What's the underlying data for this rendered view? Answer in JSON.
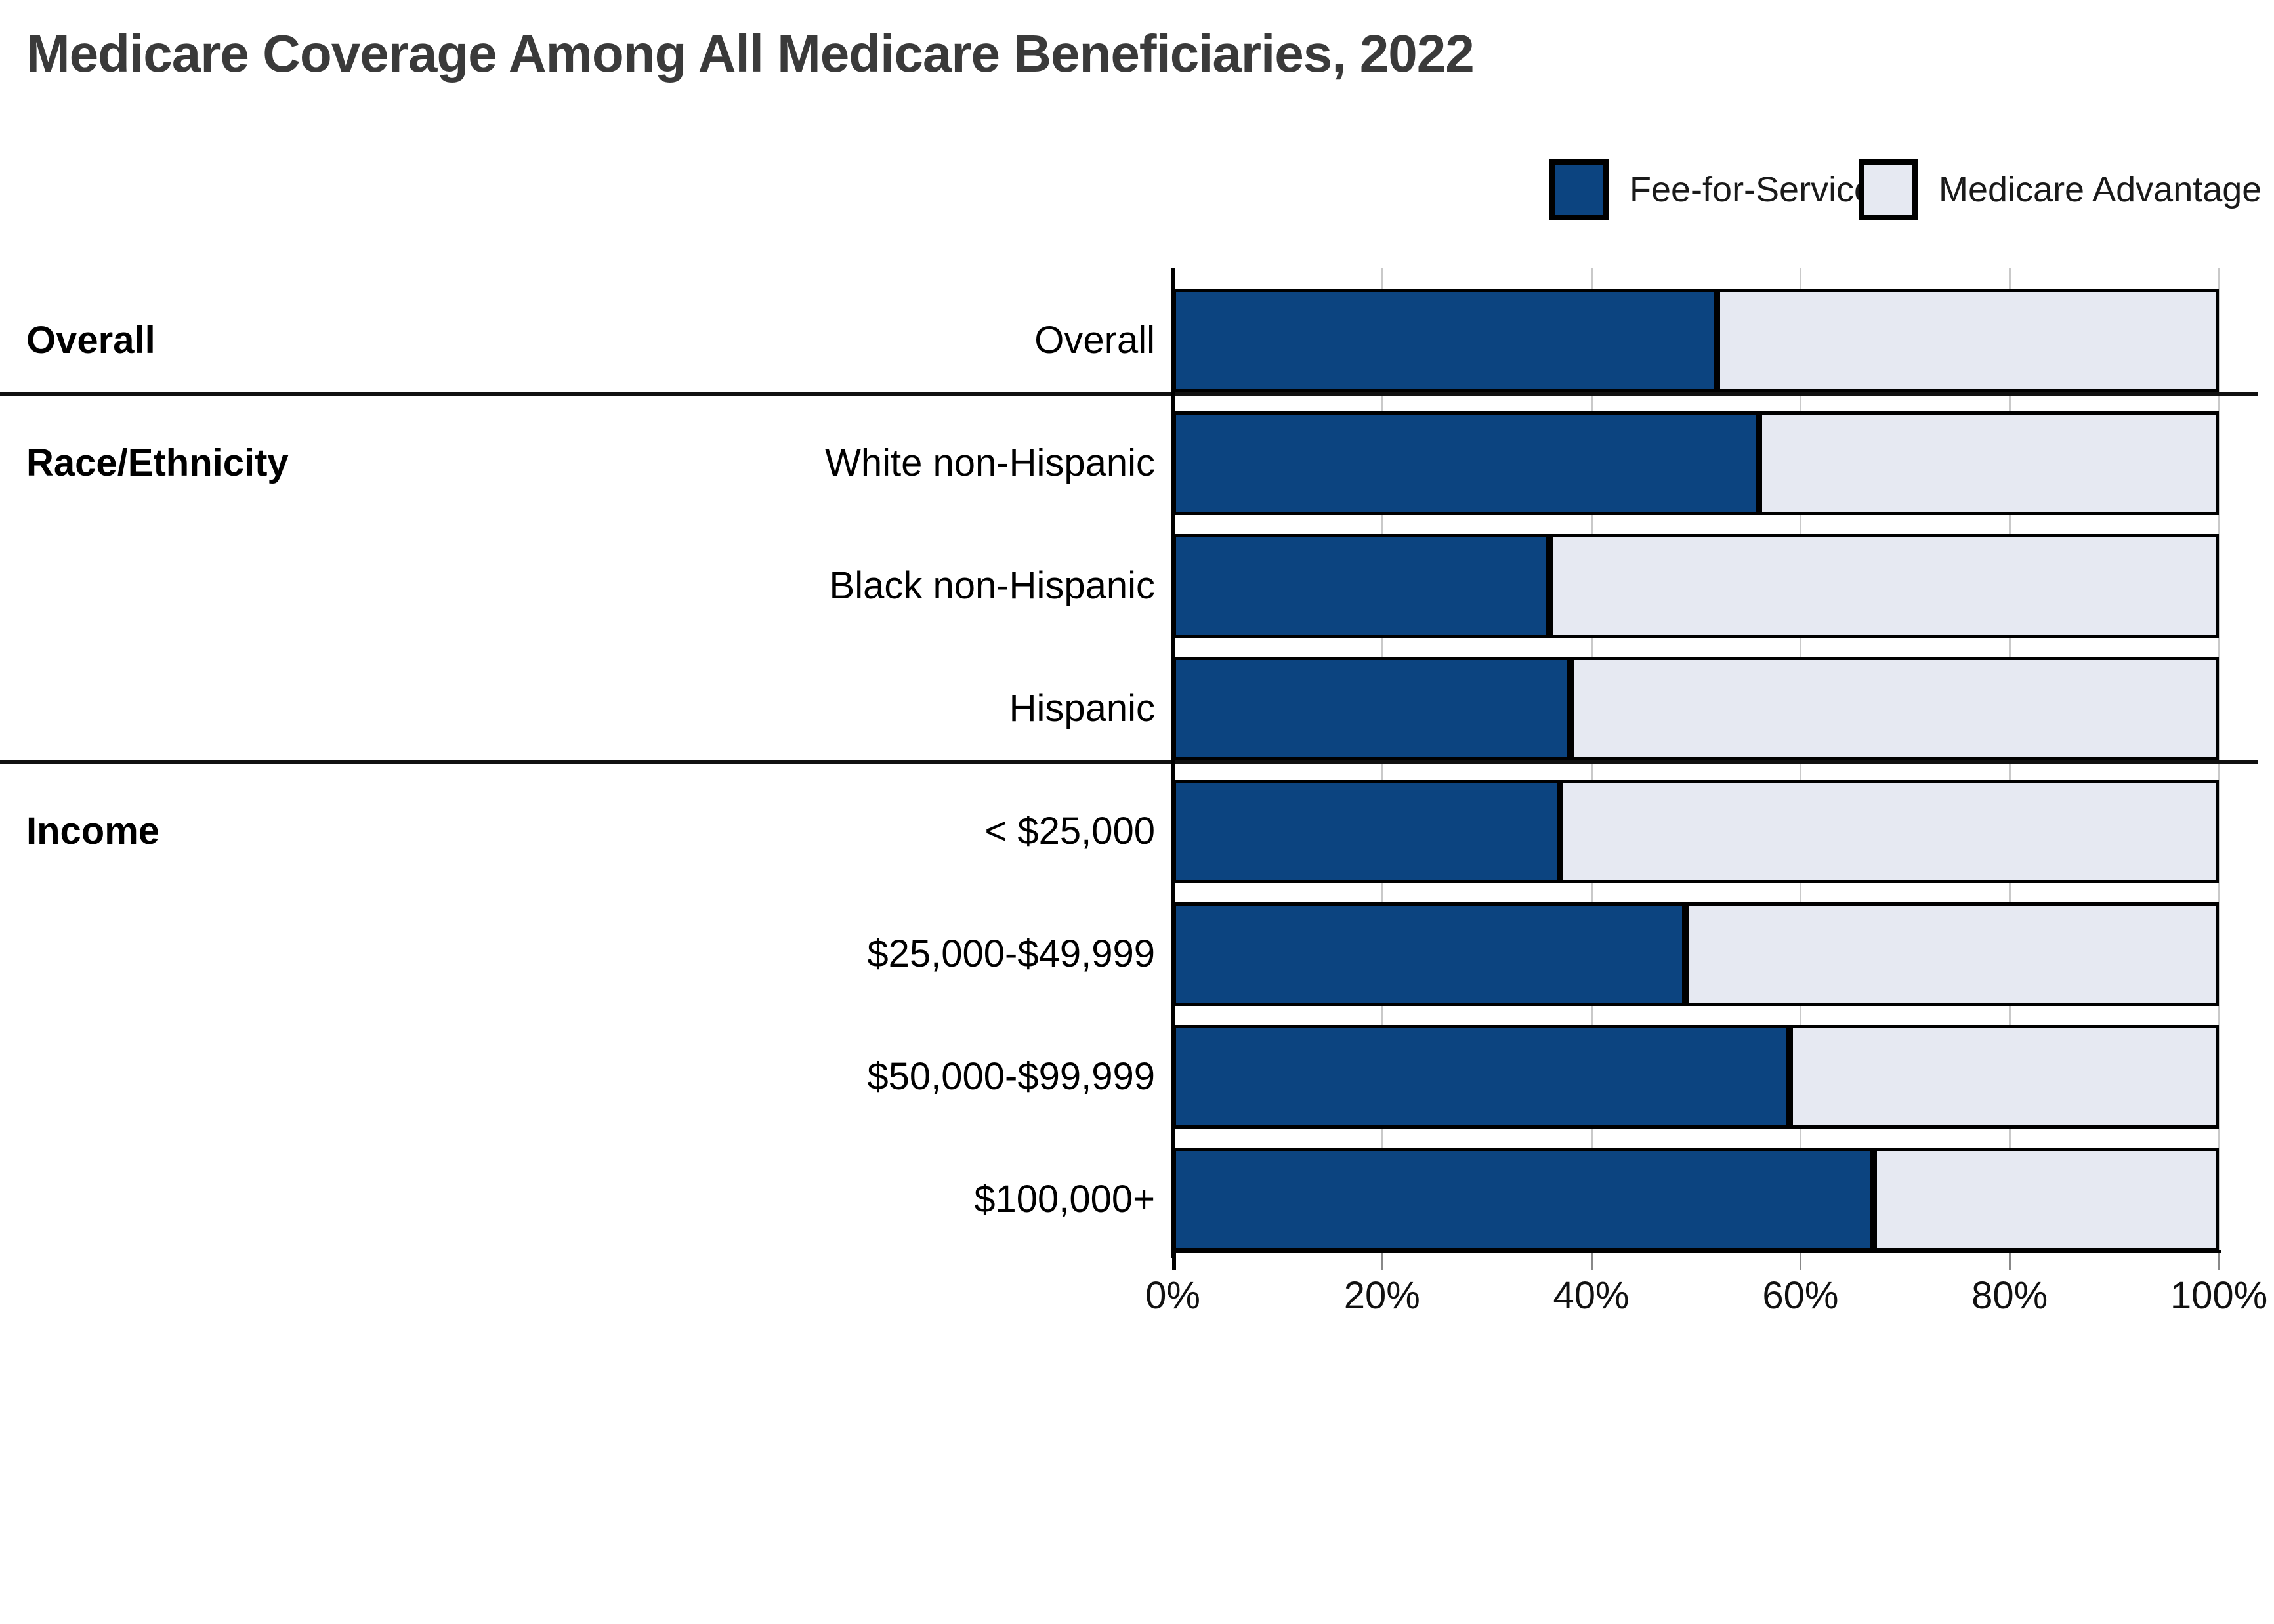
{
  "title": "Medicare Coverage Among All Medicare Beneficiaries, 2022",
  "legend": [
    {
      "label": "Fee-for-Service",
      "color": "#0c4480"
    },
    {
      "label": "Medicare Advantage",
      "color": "#e6e9f2"
    }
  ],
  "colors": {
    "fee_for_service": "#0c4480",
    "medicare_advantage": "#e6e9f2",
    "bar_border": "#000000",
    "gridline": "#c9c9c9",
    "title_text": "#3a3a3a"
  },
  "chart_data": {
    "type": "bar",
    "orientation": "horizontal",
    "stacked": true,
    "unit": "percent",
    "title": "Medicare Coverage Among All Medicare Beneficiaries, 2022",
    "categories": [
      "Overall",
      "White non-Hispanic",
      "Black non-Hispanic",
      "Hispanic",
      "< $25,000",
      "$25,000-$49,999",
      "$50,000-$99,999",
      "$100,000+"
    ],
    "sections": [
      {
        "label": "Overall",
        "first_row": 0,
        "row_count": 1
      },
      {
        "label": "Race/Ethnicity",
        "first_row": 1,
        "row_count": 3
      },
      {
        "label": "Income",
        "first_row": 4,
        "row_count": 4
      }
    ],
    "series": [
      {
        "name": "Fee-for-Service",
        "values": [
          52,
          56,
          36,
          38,
          37,
          49,
          59,
          67
        ]
      },
      {
        "name": "Medicare Advantage",
        "values": [
          48,
          44,
          64,
          62,
          63,
          51,
          41,
          33
        ]
      }
    ],
    "xlim": [
      0,
      100
    ],
    "x_tick_values": [
      0,
      20,
      40,
      60,
      80,
      100
    ],
    "x_tick_labels": [
      "0%",
      "20%",
      "40%",
      "60%",
      "80%",
      "100%"
    ],
    "grid": true,
    "legend_position": "top-right"
  }
}
